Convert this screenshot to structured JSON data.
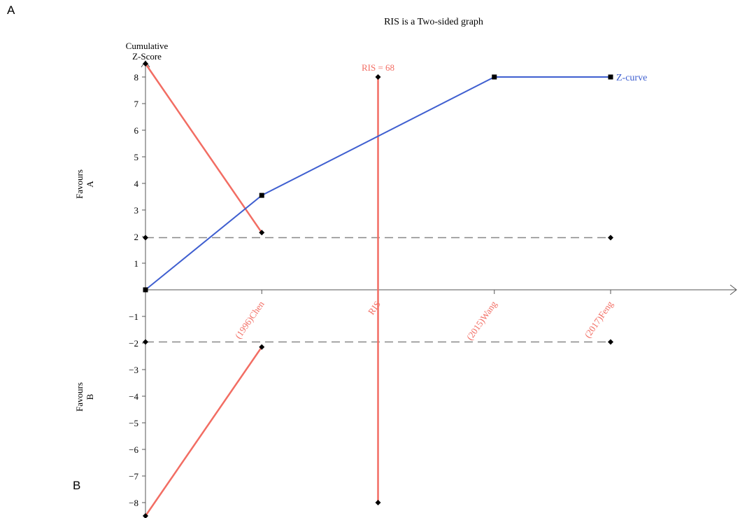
{
  "panel_labels": {
    "top": "A",
    "bottom": "B"
  },
  "colors": {
    "zcurve": "#3f5fd0",
    "boundary": "#f26d63",
    "threshold": "#888888",
    "axis": "#555555",
    "text": "#000000"
  },
  "chart_data": {
    "type": "line",
    "title": "RIS is a Two-sided graph",
    "ylabel": "Cumulative Z-Score",
    "favours_a": "Favours A",
    "favours_b": "Favours B",
    "ylim": [
      -8.5,
      8.5
    ],
    "yticks": [
      -8,
      -7,
      -6,
      -5,
      -4,
      -3,
      -2,
      -1,
      1,
      2,
      3,
      4,
      5,
      6,
      7,
      8
    ],
    "x_positions": [
      0,
      1,
      2,
      3,
      4
    ],
    "x_ticks": [
      {
        "x": 1,
        "label": "(1996)Chen"
      },
      {
        "x": 2,
        "label": "RIS"
      },
      {
        "x": 3,
        "label": "(2015)Wang"
      },
      {
        "x": 4,
        "label": "(2017)Feng"
      }
    ],
    "series": [
      {
        "name": "Z-curve",
        "points": [
          {
            "x": 0,
            "y": 0
          },
          {
            "x": 1,
            "y": 3.55
          },
          {
            "x": 3,
            "y": 8
          },
          {
            "x": 4,
            "y": 8
          }
        ]
      }
    ],
    "boundaries": {
      "upper": [
        {
          "x": 0,
          "y": 8.5
        },
        {
          "x": 1,
          "y": 2.15
        }
      ],
      "lower": [
        {
          "x": 0,
          "y": -8.5
        },
        {
          "x": 1,
          "y": -2.15
        }
      ]
    },
    "thresholds": [
      {
        "y": 1.96,
        "x": [
          0,
          4
        ]
      },
      {
        "y": -1.96,
        "x": [
          0,
          4
        ]
      }
    ],
    "ris": {
      "x": 2,
      "label": "RIS = 68",
      "y_range": [
        -8,
        8
      ]
    }
  }
}
